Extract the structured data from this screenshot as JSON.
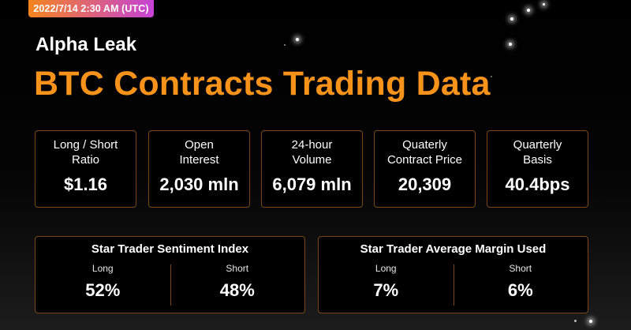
{
  "header": {
    "date": "2022/7/14 2:30 AM (UTC)",
    "subtitle": "Alpha Leak",
    "title": "BTC Contracts Trading Data"
  },
  "metrics": [
    {
      "label": "Long / Short\nRatio",
      "value": "$1.16"
    },
    {
      "label": "Open\nInterest",
      "value": "2,030 mln"
    },
    {
      "label": "24-hour\nVolume",
      "value": "6,079 mln"
    },
    {
      "label": "Quaterly\nContract Price",
      "value": "20,309"
    },
    {
      "label": "Quarterly\nBasis",
      "value": "40.4bps"
    }
  ],
  "sentiment": {
    "title": "Star Trader Sentiment Index",
    "long_label": "Long",
    "long_value": "52%",
    "short_label": "Short",
    "short_value": "48%"
  },
  "margin": {
    "title": "Star Trader Average Margin Used",
    "long_label": "Long",
    "long_value": "7%",
    "short_label": "Short",
    "short_value": "6%"
  },
  "colors": {
    "accent": "#f7931a",
    "badge_gradient_start": "#f5851e",
    "badge_gradient_end": "#c542d6",
    "card_border": "#7a4818",
    "background": "#000000"
  }
}
